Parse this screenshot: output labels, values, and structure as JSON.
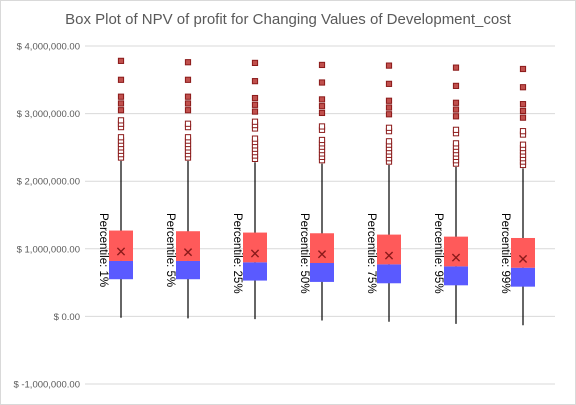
{
  "chart_data": {
    "type": "box",
    "title": "Box Plot of NPV of profit for Changing Values of Development_cost",
    "xlabel": "",
    "ylabel": "",
    "ylim": [
      -1000000,
      4000000
    ],
    "y_ticks": [
      -1000000,
      0,
      1000000,
      2000000,
      3000000,
      4000000
    ],
    "y_tick_labels": [
      "$ -1,000,000.00",
      "$ 0.00",
      "$ 1,000,000.00",
      "$ 2,000,000.00",
      "$ 3,000,000.00",
      "$ 4,000,000.00"
    ],
    "grid": true,
    "colors": {
      "upper_box": "#ff5a5a",
      "lower_box": "#5a5aff",
      "whisker": "#000000",
      "mean_marker": "#8b1a1a",
      "outlier_fill": "#c0504d",
      "outlier_stroke": "#8b1a1a",
      "gridline": "#d9d9d9"
    },
    "series": [
      {
        "category": "Percentile: 1%",
        "min": -20000,
        "q1": 550000,
        "median": 820000,
        "q3": 1270000,
        "mean": 960000,
        "whisker_top": 2300000,
        "outliers": [
          2350000,
          2400000,
          2450000,
          2500000,
          2550000,
          2600000,
          2650000,
          2800000,
          2850000,
          2900000,
          3050000,
          3150000,
          3250000,
          3500000,
          3780000
        ]
      },
      {
        "category": "Percentile: 5%",
        "min": -30000,
        "q1": 550000,
        "median": 820000,
        "q3": 1260000,
        "mean": 950000,
        "whisker_top": 2300000,
        "outliers": [
          2350000,
          2400000,
          2450000,
          2500000,
          2550000,
          2600000,
          2650000,
          2800000,
          2850000,
          3050000,
          3150000,
          3250000,
          3500000,
          3760000
        ]
      },
      {
        "category": "Percentile: 25%",
        "min": -40000,
        "q1": 530000,
        "median": 800000,
        "q3": 1240000,
        "mean": 930000,
        "whisker_top": 2280000,
        "outliers": [
          2330000,
          2380000,
          2430000,
          2480000,
          2530000,
          2580000,
          2630000,
          2780000,
          2830000,
          2880000,
          3030000,
          3130000,
          3230000,
          3480000,
          3750000
        ]
      },
      {
        "category": "Percentile: 50%",
        "min": -60000,
        "q1": 510000,
        "median": 790000,
        "q3": 1230000,
        "mean": 920000,
        "whisker_top": 2260000,
        "outliers": [
          2310000,
          2360000,
          2410000,
          2460000,
          2510000,
          2560000,
          2610000,
          2760000,
          2810000,
          3010000,
          3110000,
          3210000,
          3460000,
          3720000
        ]
      },
      {
        "category": "Percentile: 75%",
        "min": -80000,
        "q1": 490000,
        "median": 770000,
        "q3": 1210000,
        "mean": 900000,
        "whisker_top": 2240000,
        "outliers": [
          2290000,
          2340000,
          2390000,
          2440000,
          2490000,
          2540000,
          2590000,
          2740000,
          2790000,
          2990000,
          3090000,
          3190000,
          3440000,
          3710000
        ]
      },
      {
        "category": "Percentile: 95%",
        "min": -110000,
        "q1": 460000,
        "median": 740000,
        "q3": 1180000,
        "mean": 870000,
        "whisker_top": 2210000,
        "outliers": [
          2260000,
          2310000,
          2360000,
          2410000,
          2460000,
          2510000,
          2560000,
          2710000,
          2760000,
          2960000,
          3060000,
          3160000,
          3410000,
          3680000
        ]
      },
      {
        "category": "Percentile: 99%",
        "min": -130000,
        "q1": 440000,
        "median": 720000,
        "q3": 1160000,
        "mean": 850000,
        "whisker_top": 2190000,
        "outliers": [
          2240000,
          2290000,
          2340000,
          2390000,
          2440000,
          2490000,
          2540000,
          2690000,
          2740000,
          2940000,
          3040000,
          3140000,
          3390000,
          3660000
        ]
      }
    ]
  }
}
